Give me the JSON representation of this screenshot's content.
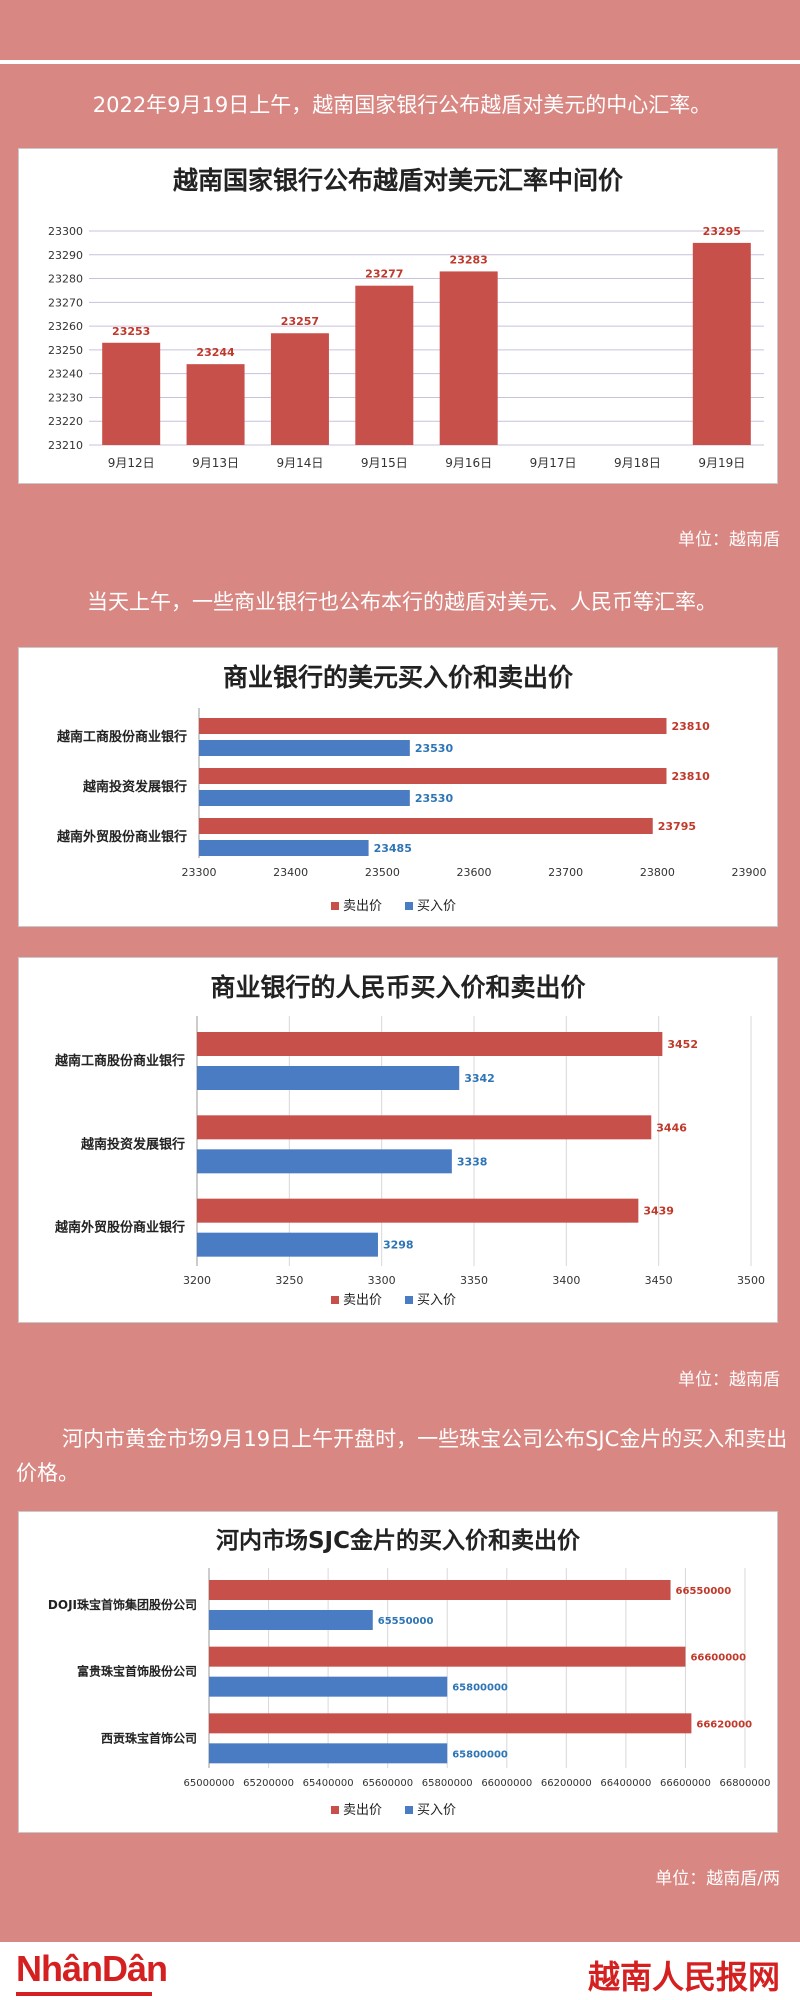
{
  "intro1": "2022年9月19日上午，越南国家银行公布越盾对美元的中心汇率。",
  "intro2": "当天上午，一些商业银行也公布本行的越盾对美元、人民币等汇率。",
  "intro3": "河内市黄金市场9月19日上午开盘时，一些珠宝公司公布SJC金片的买入和卖出价格。",
  "unit1": "单位：越南盾",
  "unit2": "单位：越南盾",
  "unit3": "单位：越南盾/两",
  "footer": {
    "left_logo": "NhânDân",
    "right_logo": "越南人民报网"
  },
  "colors": {
    "sell": "#c8504a",
    "buy": "#4a7cc3",
    "sell_label": "#c0392b",
    "buy_label": "#2e75b6",
    "background": "#d98782"
  },
  "legend": {
    "sell": "卖出价",
    "buy": "买入价"
  },
  "chart_data": [
    {
      "type": "bar",
      "title": "越南国家银行公布越盾对美元汇率中间价",
      "categories": [
        "9月12日",
        "9月13日",
        "9月14日",
        "9月15日",
        "9月16日",
        "9月17日",
        "9月18日",
        "9月19日"
      ],
      "values": [
        23253,
        23244,
        23257,
        23277,
        23283,
        null,
        null,
        23295
      ],
      "ylim": [
        23210,
        23300
      ],
      "yticks": [
        23210,
        23220,
        23230,
        23240,
        23250,
        23260,
        23270,
        23280,
        23290,
        23300
      ],
      "grid": true
    },
    {
      "type": "bar",
      "orientation": "horizontal",
      "title": "商业银行的美元买入价和卖出价",
      "categories": [
        "越南工商股份商业银行",
        "越南投资发展银行",
        "越南外贸股份商业银行"
      ],
      "series": [
        {
          "name": "卖出价",
          "values": [
            23810,
            23810,
            23795
          ]
        },
        {
          "name": "买入价",
          "values": [
            23530,
            23530,
            23485
          ]
        }
      ],
      "xlim": [
        23300,
        23900
      ],
      "xticks": [
        23300,
        23400,
        23500,
        23600,
        23700,
        23800,
        23900
      ],
      "legend": "bottom"
    },
    {
      "type": "bar",
      "orientation": "horizontal",
      "title": "商业银行的人民币买入价和卖出价",
      "categories": [
        "越南工商股份商业银行",
        "越南投资发展银行",
        "越南外贸股份商业银行"
      ],
      "series": [
        {
          "name": "卖出价",
          "values": [
            3452,
            3446,
            3439
          ]
        },
        {
          "name": "买入价",
          "values": [
            3342,
            3338,
            3298
          ]
        }
      ],
      "xlim": [
        3200,
        3500
      ],
      "xticks": [
        3200,
        3250,
        3300,
        3350,
        3400,
        3450,
        3500
      ],
      "legend": "bottom"
    },
    {
      "type": "bar",
      "orientation": "horizontal",
      "title": "河内市场SJC金片的买入价和卖出价",
      "categories": [
        "DOJI珠宝首饰集团股份公司",
        "富贵珠宝首饰股份公司",
        "西贡珠宝首饰公司"
      ],
      "series": [
        {
          "name": "卖出价",
          "values": [
            66550000,
            66600000,
            66620000
          ]
        },
        {
          "name": "买入价",
          "values": [
            65550000,
            65800000,
            65800000
          ]
        }
      ],
      "xlim": [
        65000000,
        66800000
      ],
      "xticks": [
        65000000,
        65200000,
        65400000,
        65600000,
        65800000,
        66000000,
        66200000,
        66400000,
        66600000,
        66800000
      ],
      "legend": "bottom"
    }
  ]
}
